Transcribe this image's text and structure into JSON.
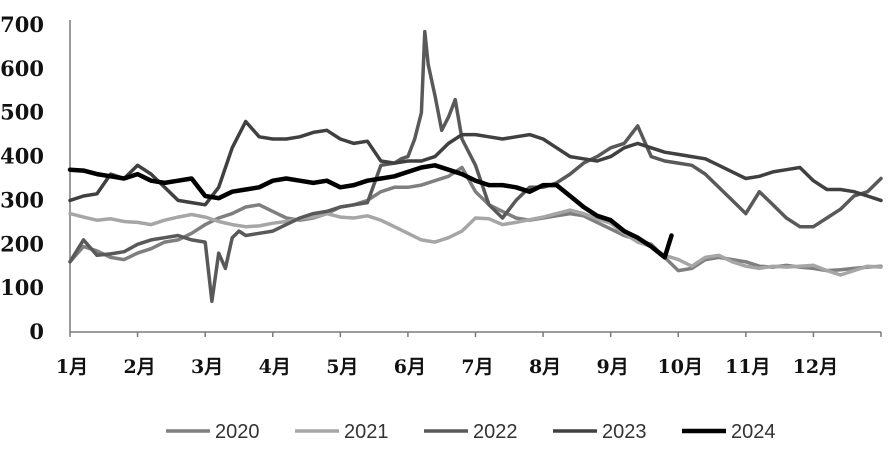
{
  "chart_data": {
    "type": "line",
    "title": "",
    "xlabel": "",
    "ylabel": "",
    "ylim": [
      0,
      700
    ],
    "y_ticks": [
      "0",
      "100",
      "200",
      "300",
      "400",
      "500",
      "600",
      "700"
    ],
    "y_tick_values": [
      0,
      100,
      200,
      300,
      400,
      500,
      600,
      700
    ],
    "x_ticks": [
      "1月",
      "2月",
      "3月",
      "4月",
      "5月",
      "6月",
      "7月",
      "8月",
      "9月",
      "10月",
      "11月",
      "12月"
    ],
    "x_range_months": [
      1,
      13
    ],
    "grid": false,
    "legend_position": "bottom",
    "series": [
      {
        "name": "2020",
        "color": "#7f7f7f",
        "width": 3.5,
        "x": [
          1.0,
          1.2,
          1.4,
          1.6,
          1.8,
          2.0,
          2.2,
          2.4,
          2.6,
          2.8,
          3.0,
          3.2,
          3.4,
          3.6,
          3.8,
          4.0,
          4.2,
          4.4,
          4.6,
          4.8,
          5.0,
          5.2,
          5.4,
          5.6,
          5.8,
          6.0,
          6.2,
          6.4,
          6.6,
          6.8,
          7.0,
          7.2,
          7.4,
          7.6,
          7.8,
          8.0,
          8.2,
          8.4,
          8.6,
          8.8,
          9.0,
          9.2,
          9.4,
          9.6,
          9.8,
          10.0,
          10.2,
          10.4,
          10.6,
          10.8,
          11.0,
          11.2,
          11.4,
          11.6,
          11.8,
          12.0,
          12.2,
          12.4,
          12.6,
          12.8,
          13.0
        ],
        "y": [
          160,
          195,
          185,
          170,
          165,
          180,
          190,
          205,
          210,
          225,
          245,
          260,
          270,
          285,
          290,
          275,
          260,
          255,
          260,
          270,
          285,
          290,
          300,
          320,
          330,
          330,
          335,
          345,
          355,
          375,
          320,
          290,
          275,
          260,
          255,
          260,
          265,
          270,
          265,
          250,
          235,
          220,
          210,
          200,
          170,
          140,
          145,
          165,
          170,
          165,
          160,
          150,
          148,
          152,
          148,
          145,
          140,
          142,
          145,
          148,
          150
        ]
      },
      {
        "name": "2021",
        "color": "#a6a6a6",
        "width": 3.5,
        "x": [
          1.0,
          1.2,
          1.4,
          1.6,
          1.8,
          2.0,
          2.2,
          2.4,
          2.6,
          2.8,
          3.0,
          3.2,
          3.4,
          3.6,
          3.8,
          4.0,
          4.2,
          4.4,
          4.6,
          4.8,
          5.0,
          5.2,
          5.4,
          5.6,
          5.8,
          6.0,
          6.2,
          6.4,
          6.6,
          6.8,
          7.0,
          7.2,
          7.4,
          7.6,
          7.8,
          8.0,
          8.2,
          8.4,
          8.6,
          8.8,
          9.0,
          9.2,
          9.4,
          9.6,
          9.8,
          10.0,
          10.2,
          10.4,
          10.6,
          10.8,
          11.0,
          11.2,
          11.4,
          11.6,
          11.8,
          12.0,
          12.2,
          12.4,
          12.6,
          12.8,
          13.0
        ],
        "y": [
          270,
          262,
          255,
          258,
          252,
          250,
          245,
          255,
          262,
          268,
          262,
          252,
          245,
          240,
          242,
          248,
          252,
          258,
          262,
          270,
          262,
          260,
          265,
          255,
          240,
          225,
          210,
          205,
          215,
          230,
          260,
          258,
          245,
          250,
          256,
          262,
          270,
          278,
          270,
          258,
          248,
          225,
          205,
          195,
          175,
          165,
          150,
          170,
          175,
          160,
          150,
          145,
          150,
          148,
          150,
          152,
          140,
          130,
          140,
          150,
          148
        ]
      },
      {
        "name": "2022",
        "color": "#595959",
        "width": 3.5,
        "x": [
          1.0,
          1.2,
          1.4,
          1.6,
          1.8,
          2.0,
          2.2,
          2.4,
          2.6,
          2.8,
          3.0,
          3.1,
          3.2,
          3.3,
          3.4,
          3.5,
          3.6,
          3.8,
          4.0,
          4.2,
          4.4,
          4.6,
          4.8,
          5.0,
          5.2,
          5.4,
          5.6,
          5.8,
          5.9,
          6.0,
          6.1,
          6.2,
          6.25,
          6.3,
          6.4,
          6.5,
          6.6,
          6.7,
          6.8,
          7.0,
          7.2,
          7.4,
          7.6,
          7.8,
          8.0,
          8.2,
          8.4,
          8.6,
          8.8,
          9.0,
          9.2,
          9.4,
          9.6,
          9.8,
          10.0,
          10.2,
          10.4,
          10.6,
          10.8,
          11.0,
          11.2,
          11.4,
          11.6,
          11.8,
          12.0,
          12.2,
          12.4,
          12.6,
          12.8,
          13.0
        ],
        "y": [
          160,
          210,
          175,
          178,
          183,
          200,
          210,
          215,
          220,
          210,
          205,
          70,
          180,
          145,
          215,
          230,
          220,
          225,
          230,
          245,
          260,
          270,
          275,
          285,
          290,
          295,
          380,
          385,
          395,
          400,
          440,
          500,
          685,
          610,
          540,
          460,
          490,
          530,
          440,
          380,
          290,
          260,
          300,
          330,
          330,
          340,
          360,
          385,
          400,
          420,
          430,
          470,
          400,
          390,
          385,
          380,
          360,
          330,
          300,
          270,
          320,
          290,
          260,
          240,
          240,
          260,
          280,
          310,
          320,
          350
        ]
      },
      {
        "name": "2023",
        "color": "#404040",
        "width": 3.5,
        "x": [
          1.0,
          1.2,
          1.4,
          1.6,
          1.8,
          2.0,
          2.2,
          2.4,
          2.6,
          2.8,
          3.0,
          3.2,
          3.4,
          3.5,
          3.6,
          3.8,
          4.0,
          4.2,
          4.4,
          4.6,
          4.8,
          5.0,
          5.2,
          5.4,
          5.6,
          5.8,
          6.0,
          6.2,
          6.4,
          6.6,
          6.8,
          7.0,
          7.2,
          7.4,
          7.6,
          7.8,
          8.0,
          8.2,
          8.4,
          8.6,
          8.8,
          9.0,
          9.2,
          9.4,
          9.6,
          9.8,
          10.0,
          10.2,
          10.4,
          10.6,
          10.8,
          11.0,
          11.2,
          11.4,
          11.6,
          11.8,
          12.0,
          12.2,
          12.4,
          12.6,
          12.8,
          13.0
        ],
        "y": [
          300,
          310,
          315,
          360,
          350,
          380,
          360,
          330,
          300,
          295,
          290,
          330,
          420,
          450,
          480,
          445,
          440,
          440,
          445,
          455,
          460,
          440,
          430,
          435,
          390,
          385,
          390,
          390,
          400,
          430,
          450,
          450,
          445,
          440,
          445,
          450,
          440,
          420,
          400,
          395,
          390,
          400,
          420,
          430,
          420,
          410,
          405,
          400,
          395,
          380,
          365,
          350,
          355,
          365,
          370,
          375,
          345,
          325,
          325,
          320,
          310,
          300
        ]
      },
      {
        "name": "2024",
        "color": "#000000",
        "width": 4.5,
        "x": [
          1.0,
          1.2,
          1.4,
          1.6,
          1.8,
          2.0,
          2.2,
          2.4,
          2.6,
          2.8,
          3.0,
          3.2,
          3.4,
          3.6,
          3.8,
          4.0,
          4.2,
          4.4,
          4.6,
          4.8,
          5.0,
          5.2,
          5.4,
          5.6,
          5.8,
          6.0,
          6.2,
          6.4,
          6.6,
          6.8,
          7.0,
          7.2,
          7.4,
          7.6,
          7.8,
          8.0,
          8.2,
          8.4,
          8.6,
          8.8,
          9.0,
          9.2,
          9.4,
          9.6,
          9.8,
          9.9
        ],
        "y": [
          370,
          368,
          360,
          355,
          350,
          360,
          345,
          340,
          345,
          350,
          310,
          305,
          320,
          325,
          330,
          345,
          350,
          345,
          340,
          345,
          330,
          335,
          345,
          350,
          355,
          365,
          375,
          380,
          370,
          360,
          345,
          335,
          335,
          330,
          320,
          335,
          335,
          310,
          285,
          265,
          255,
          230,
          215,
          195,
          170,
          220
        ]
      }
    ]
  }
}
